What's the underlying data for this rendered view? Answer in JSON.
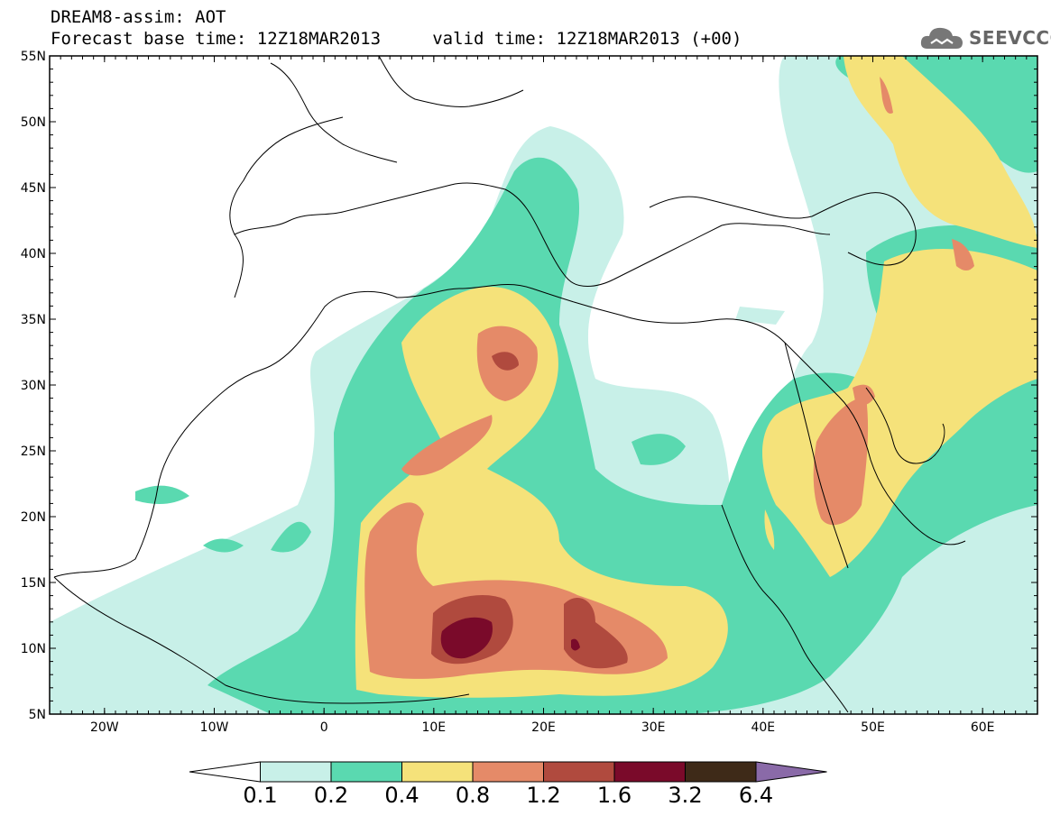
{
  "header": {
    "line1": "DREAM8-assim: AOT",
    "line2": "Forecast base time: 12Z18MAR2013     valid time: 12Z18MAR2013 (+00)",
    "logo_text": "SEEVCCC"
  },
  "map": {
    "lon_range": [
      -25,
      65
    ],
    "lat_range": [
      5,
      55
    ],
    "lat_ticks": [
      "5N",
      "10N",
      "15N",
      "20N",
      "25N",
      "30N",
      "35N",
      "40N",
      "45N",
      "50N",
      "55N"
    ],
    "lon_ticks": [
      "20W",
      "10W",
      "0",
      "10E",
      "20E",
      "30E",
      "40E",
      "50E",
      "60E"
    ]
  },
  "colorbar": {
    "levels": [
      "0.1",
      "0.2",
      "0.4",
      "0.8",
      "1.2",
      "1.6",
      "3.2",
      "6.4"
    ],
    "colors": [
      "#ffffff",
      "#c8f0e8",
      "#5ad9b0",
      "#f5e27a",
      "#e58a68",
      "#b04a3e",
      "#7a0a2a",
      "#3e2a18",
      "#8a6aa8"
    ]
  }
}
